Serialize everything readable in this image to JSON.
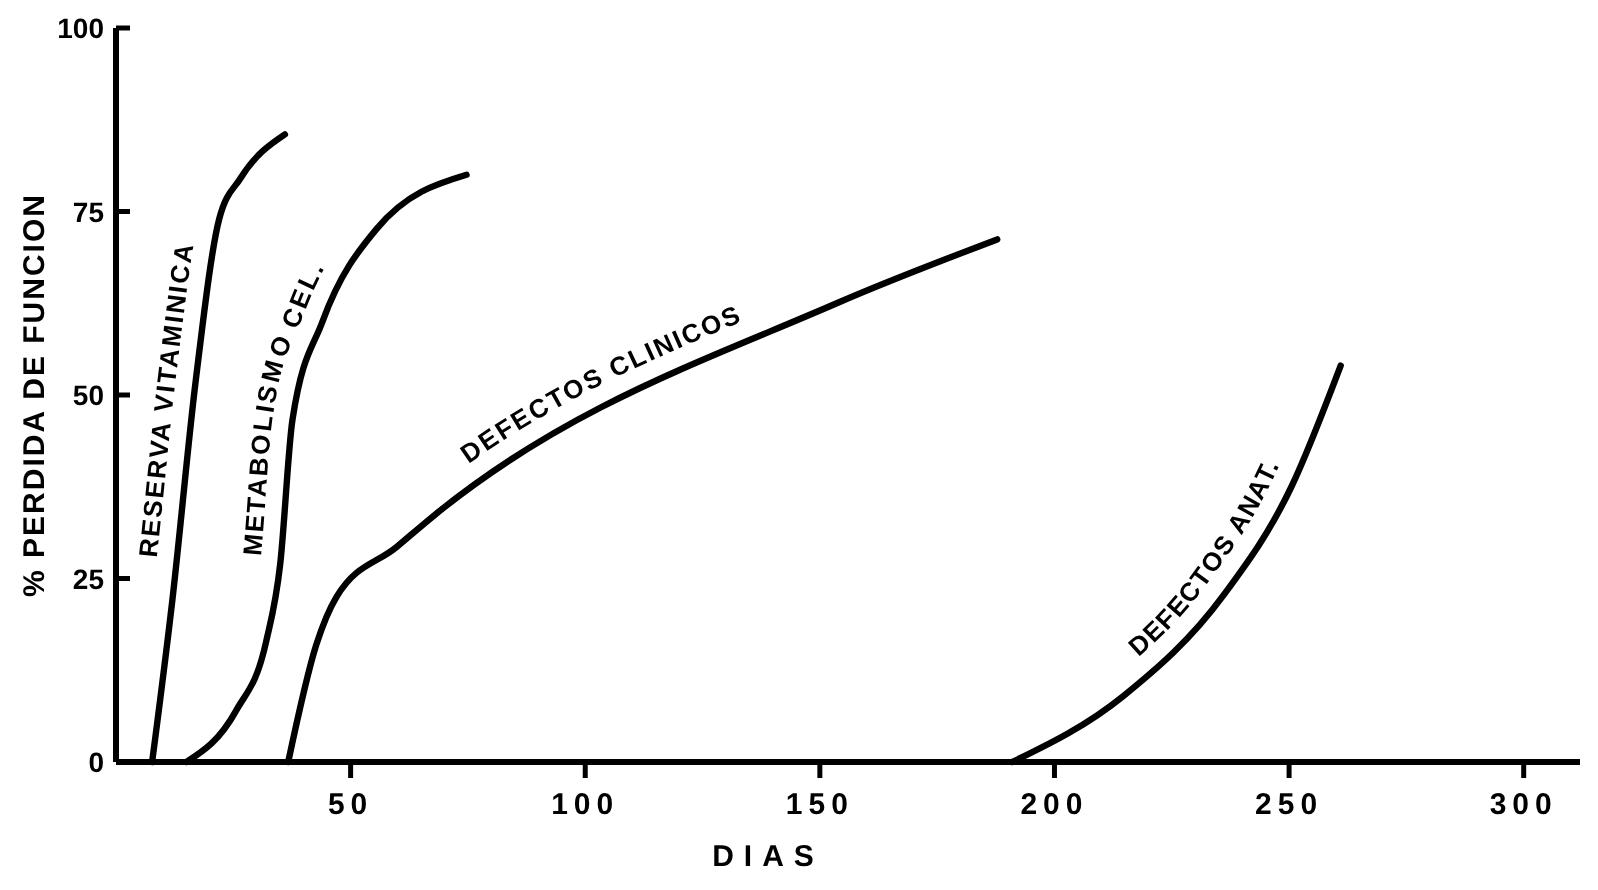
{
  "chart_data": {
    "type": "line",
    "xlabel": "DIAS",
    "ylabel": "% PERDIDA DE FUNCION",
    "xlim": [
      0,
      312
    ],
    "ylim": [
      0,
      100
    ],
    "xticks": [
      50,
      100,
      150,
      200,
      250,
      300
    ],
    "yticks": [
      0,
      25,
      50,
      75,
      100
    ],
    "grid": false,
    "legend": false,
    "series": [
      {
        "name": "RESERVA VITAMINICA",
        "color": "#000000",
        "x": [
          7.7,
          12,
          17,
          22,
          26.5,
          36
        ],
        "values": [
          0,
          22,
          52,
          74,
          79.5,
          85.5
        ]
      },
      {
        "name": "METABOLISMO CEL.",
        "color": "#000000",
        "x": [
          15,
          25.6,
          32,
          35,
          37.6,
          44,
          55.5,
          74.7
        ],
        "values": [
          0,
          7,
          16.4,
          27,
          46.6,
          60,
          72.6,
          80
        ]
      },
      {
        "name": "DEFECTOS CLINICOS",
        "color": "#000000",
        "x": [
          36.7,
          42.7,
          47,
          59.8,
          68,
          153.6,
          187.8
        ],
        "values": [
          0,
          16,
          22.5,
          29.3,
          33.7,
          62.5,
          71.2
        ]
      },
      {
        "name": "DEFECTOS ANAT.",
        "color": "#000000",
        "x": [
          191,
          214.7,
          236,
          250.5,
          261
        ],
        "values": [
          0,
          9,
          22.7,
          37.5,
          54
        ]
      }
    ]
  }
}
